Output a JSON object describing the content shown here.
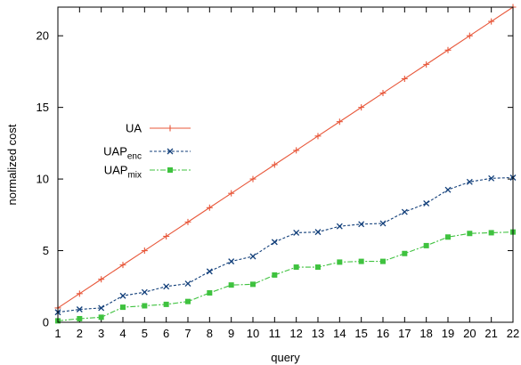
{
  "chart_data": {
    "type": "line",
    "xlabel": "query",
    "ylabel": "normalized cost",
    "xlim": [
      1,
      22
    ],
    "ylim": [
      0,
      22
    ],
    "x_ticks": [
      1,
      2,
      3,
      4,
      5,
      6,
      7,
      8,
      9,
      10,
      11,
      12,
      13,
      14,
      15,
      16,
      17,
      18,
      19,
      20,
      21,
      22
    ],
    "y_ticks": [
      0,
      5,
      10,
      15,
      20
    ],
    "grid": false,
    "legend_position": "left-middle",
    "x": [
      1,
      2,
      3,
      4,
      5,
      6,
      7,
      8,
      9,
      10,
      11,
      12,
      13,
      14,
      15,
      16,
      17,
      18,
      19,
      20,
      21,
      22
    ],
    "series": [
      {
        "name": "UA",
        "legend": {
          "base": "UA",
          "sub": ""
        },
        "color": "#e8573a",
        "marker": "plus",
        "dash": "",
        "values": [
          1,
          2,
          3,
          4,
          5,
          6,
          7,
          8,
          9,
          10,
          11,
          12,
          13,
          14,
          15,
          16,
          17,
          18,
          19,
          20,
          21,
          22
        ]
      },
      {
        "name": "UAPenc",
        "legend": {
          "base": "UAP",
          "sub": "enc"
        },
        "color": "#123f7a",
        "marker": "cross",
        "dash": "3,2",
        "values": [
          0.7,
          0.9,
          1.0,
          1.85,
          2.1,
          2.5,
          2.7,
          3.55,
          4.25,
          4.6,
          5.6,
          6.25,
          6.3,
          6.7,
          6.85,
          6.9,
          7.7,
          8.3,
          9.25,
          9.8,
          10.05,
          10.1
        ]
      },
      {
        "name": "UAPmix",
        "legend": {
          "base": "UAP",
          "sub": "mix"
        },
        "color": "#3fc23f",
        "marker": "square",
        "dash": "6,2,2,2",
        "values": [
          0.1,
          0.25,
          0.35,
          1.05,
          1.15,
          1.25,
          1.45,
          2.05,
          2.6,
          2.65,
          3.3,
          3.85,
          3.85,
          4.2,
          4.25,
          4.25,
          4.8,
          5.35,
          5.95,
          6.2,
          6.25,
          6.3
        ]
      }
    ]
  }
}
